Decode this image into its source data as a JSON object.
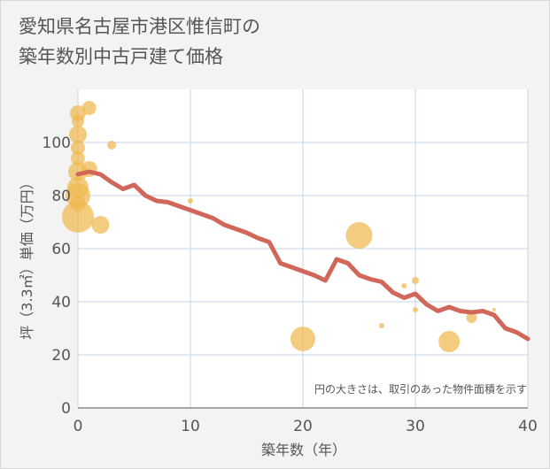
{
  "chart_data": {
    "type": "scatter",
    "title": "愛知県名古屋市港区惟信町の\n築年数別中古戸建て価格",
    "xlabel": "築年数（年）",
    "ylabel": "坪（3.3㎡）単価（万円）",
    "xlim": [
      0,
      40
    ],
    "ylim": [
      0,
      120
    ],
    "x_ticks": [
      0,
      10,
      20,
      30,
      40
    ],
    "y_ticks": [
      0,
      20,
      40,
      60,
      80,
      100
    ],
    "grid": true,
    "note": "円の大きさは、取引のあった物件面積を示す",
    "scatter_color": "#f0b94f",
    "line_color": "#d0675a",
    "points": [
      {
        "x": 0,
        "y": 111,
        "size": 9
      },
      {
        "x": 0,
        "y": 108,
        "size": 7
      },
      {
        "x": 0,
        "y": 103,
        "size": 10
      },
      {
        "x": 0,
        "y": 98,
        "size": 8
      },
      {
        "x": 0,
        "y": 94,
        "size": 8
      },
      {
        "x": 0,
        "y": 89,
        "size": 11
      },
      {
        "x": 0,
        "y": 83,
        "size": 12
      },
      {
        "x": 0,
        "y": 80,
        "size": 14
      },
      {
        "x": 0,
        "y": 77,
        "size": 9
      },
      {
        "x": 0,
        "y": 72,
        "size": 18
      },
      {
        "x": 1,
        "y": 113,
        "size": 8
      },
      {
        "x": 1,
        "y": 90,
        "size": 9
      },
      {
        "x": 2,
        "y": 69,
        "size": 10
      },
      {
        "x": 3,
        "y": 99,
        "size": 5
      },
      {
        "x": 10,
        "y": 78,
        "size": 3
      },
      {
        "x": 20,
        "y": 26,
        "size": 14
      },
      {
        "x": 25,
        "y": 65,
        "size": 15
      },
      {
        "x": 27,
        "y": 31,
        "size": 3
      },
      {
        "x": 29,
        "y": 46,
        "size": 3
      },
      {
        "x": 30,
        "y": 48,
        "size": 4
      },
      {
        "x": 30,
        "y": 37,
        "size": 3
      },
      {
        "x": 33,
        "y": 25,
        "size": 12
      },
      {
        "x": 35,
        "y": 34,
        "size": 6
      },
      {
        "x": 37,
        "y": 37,
        "size": 2
      }
    ],
    "trend": {
      "x": [
        0,
        1,
        2,
        3,
        4,
        5,
        6,
        7,
        8,
        9,
        10,
        11,
        12,
        13,
        14,
        15,
        16,
        17,
        18,
        19,
        20,
        21,
        22,
        23,
        24,
        25,
        26,
        27,
        28,
        29,
        30,
        31,
        32,
        33,
        34,
        35,
        36,
        37,
        38,
        39,
        40
      ],
      "y": [
        88,
        89,
        88,
        85,
        82.5,
        84,
        80,
        78,
        77.5,
        76,
        74.5,
        73,
        71.5,
        69,
        67.5,
        66,
        64,
        62.5,
        54.5,
        53,
        51.5,
        50,
        48,
        56,
        54.5,
        50,
        48.5,
        47.5,
        43.5,
        41.5,
        43,
        39,
        36.5,
        38,
        36.5,
        36,
        36.5,
        35,
        30,
        28.5,
        26
      ]
    }
  }
}
